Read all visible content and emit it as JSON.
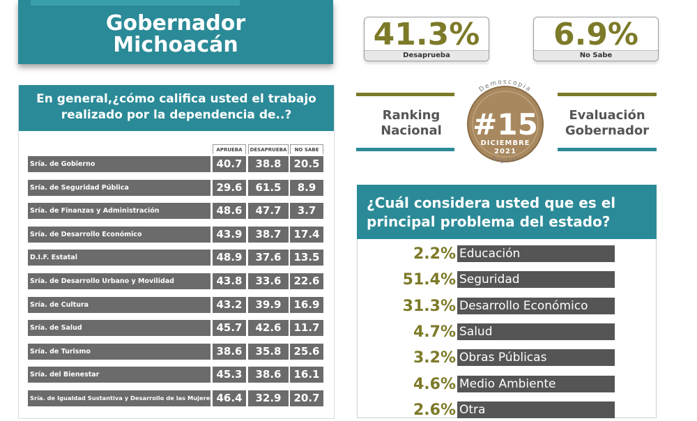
{
  "title": "Gobernador Michoacán",
  "stats": [
    {
      "value": "41.3%",
      "label": "Desaprueba"
    },
    {
      "value": "6.9%",
      "label": "No Sabe"
    }
  ],
  "ranking": {
    "left_label": "Ranking Nacional",
    "right_label": "Evaluación Gobernador",
    "badge_number": "#15",
    "badge_month": "DICIEMBRE",
    "badge_year": "2021",
    "brand_top": "Demoscopia",
    "brand_bottom": "Digital"
  },
  "colors": {
    "teal": "#2b8a97",
    "olive": "#7d7a29",
    "bar_gray": "#6b6b6b",
    "badge": "#a8885f"
  },
  "chart_data": [
    {
      "type": "table",
      "title": "En general,¿cómo califica usted el trabajo realizado por la dependencia de..?",
      "columns": [
        "APRUEBA",
        "DESAPRUEBA",
        "NO SABE"
      ],
      "rows": [
        {
          "name": "Sría. de Gobierno",
          "values": [
            "40.7",
            "38.8",
            "20.5"
          ]
        },
        {
          "name": "Sría. de Seguridad Pública",
          "values": [
            "29.6",
            "61.5",
            "8.9"
          ]
        },
        {
          "name": "Sría. de Finanzas y Administración",
          "values": [
            "48.6",
            "47.7",
            "3.7"
          ]
        },
        {
          "name": "Sría. de Desarrollo Económico",
          "values": [
            "43.9",
            "38.7",
            "17.4"
          ]
        },
        {
          "name": "D.I.F. Estatal",
          "values": [
            "48.9",
            "37.6",
            "13.5"
          ]
        },
        {
          "name": "Sría. de Desarrollo Urbano y Movilidad",
          "values": [
            "43.8",
            "33.6",
            "22.6"
          ]
        },
        {
          "name": "Sría. de Cultura",
          "values": [
            "43.2",
            "39.9",
            "16.9"
          ]
        },
        {
          "name": "Sría. de Salud",
          "values": [
            "45.7",
            "42.6",
            "11.7"
          ]
        },
        {
          "name": "Sría. de Turismo",
          "values": [
            "38.6",
            "35.8",
            "25.6"
          ]
        },
        {
          "name": "Sría. del Bienestar",
          "values": [
            "45.3",
            "38.6",
            "16.1"
          ]
        },
        {
          "name": "Sría. de Igualdad Sustantiva y Desarrollo de las Mujeres",
          "values": [
            "46.4",
            "32.9",
            "20.7"
          ]
        }
      ]
    },
    {
      "type": "bar",
      "title": "¿Cuál considera usted que es el principal problema del estado?",
      "categories": [
        "Educación",
        "Seguridad",
        "Desarrollo Económico",
        "Salud",
        "Obras Públicas",
        "Medio Ambiente",
        "Otra"
      ],
      "values": [
        2.2,
        51.4,
        31.3,
        4.7,
        3.2,
        4.6,
        2.6
      ],
      "labels": [
        "2.2%",
        "51.4%",
        "31.3%",
        "4.7%",
        "3.2%",
        "4.6%",
        "2.6%"
      ]
    }
  ]
}
